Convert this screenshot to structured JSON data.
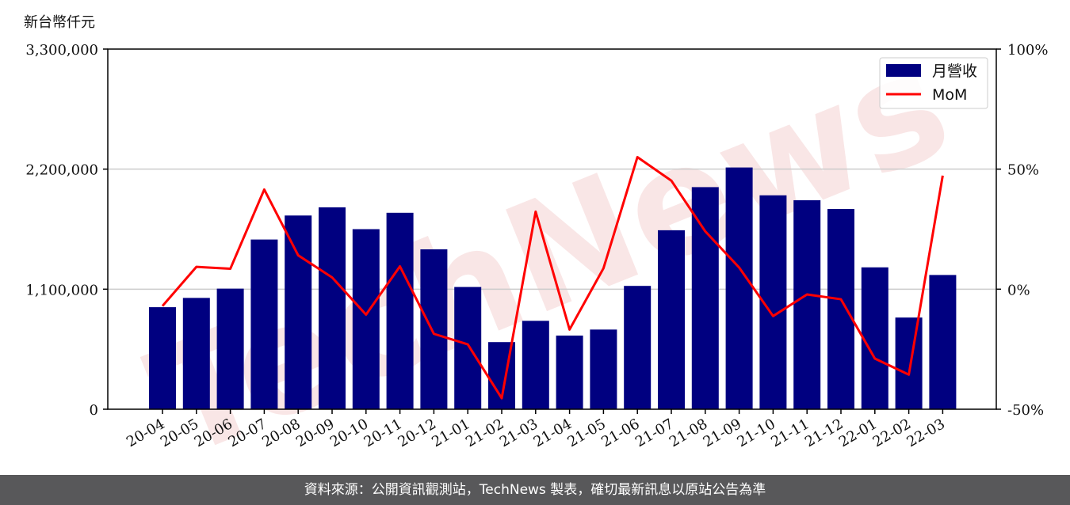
{
  "unit_label": "新台幣仟元",
  "footer": "資料來源：公開資訊觀測站，TechNews 製表，確切最新訊息以原站公告為準",
  "watermark": "TechNews",
  "colors": {
    "bar": "#000080",
    "line": "#ff0000",
    "footer_bg": "#58585a",
    "grid": "#cccccc"
  },
  "chart_data": {
    "type": "bar",
    "categories": [
      "20-04",
      "20-05",
      "20-06",
      "20-07",
      "20-08",
      "20-09",
      "20-10",
      "20-11",
      "20-12",
      "21-01",
      "21-02",
      "21-03",
      "21-04",
      "21-05",
      "21-06",
      "21-07",
      "21-08",
      "21-09",
      "21-10",
      "21-11",
      "21-12",
      "22-01",
      "22-02",
      "22-03"
    ],
    "series": [
      {
        "name": "月營收",
        "type": "bar",
        "axis": "left",
        "values": [
          935000,
          1020000,
          1105000,
          1555000,
          1775000,
          1850000,
          1650000,
          1800000,
          1465000,
          1120000,
          615000,
          810000,
          675000,
          730000,
          1130000,
          1640000,
          2035000,
          2215000,
          1960000,
          1915000,
          1835000,
          1300000,
          840000,
          1230000
        ]
      },
      {
        "name": "MoM",
        "type": "line",
        "axis": "right",
        "unit": "%",
        "values": [
          -7.0,
          9.3,
          8.5,
          41.5,
          14.1,
          4.9,
          -10.6,
          9.5,
          -18.6,
          -23.0,
          -45.4,
          32.3,
          -16.8,
          8.7,
          55.0,
          45.2,
          24.1,
          9.0,
          -11.2,
          -2.2,
          -4.2,
          -28.9,
          -35.6,
          47.3
        ]
      }
    ],
    "y_left": {
      "ylim": [
        0,
        3300000
      ],
      "ticks": [
        0,
        1100000,
        2200000,
        3300000
      ],
      "tick_labels": [
        "0",
        "1,100,000",
        "2,200,000",
        "3,300,000"
      ]
    },
    "y_right": {
      "ylim": [
        -50,
        100
      ],
      "ticks": [
        -50,
        0,
        50,
        100
      ],
      "tick_labels": [
        "-50%",
        "0%",
        "50%",
        "100%"
      ]
    },
    "grid": "horizontal",
    "legend": "top-right"
  }
}
